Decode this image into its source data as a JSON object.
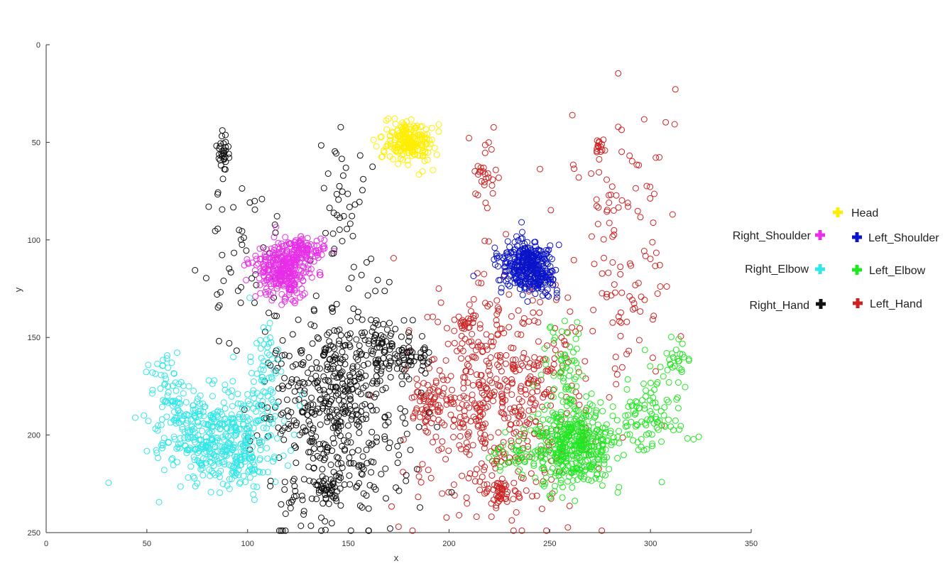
{
  "chart_data": {
    "type": "scatter",
    "title": "",
    "xlabel": "x",
    "ylabel": "y",
    "xlim": [
      0,
      350
    ],
    "ylim": [
      0,
      250
    ],
    "y_reversed": true,
    "x_ticks": [
      "0",
      "50",
      "100",
      "150",
      "200",
      "250",
      "300",
      "350"
    ],
    "y_ticks": [
      "0",
      "50",
      "100",
      "150",
      "200",
      "250"
    ],
    "grid": false,
    "legend_position": "right",
    "marker": "open-circle",
    "series": [
      {
        "name": "Head",
        "color": "#ffee00",
        "clusters": [
          {
            "cx": 180,
            "cy": 50,
            "sx": 6,
            "sy": 5,
            "n": 220
          }
        ]
      },
      {
        "name": "Right_Shoulder",
        "color": "#e82ee8",
        "clusters": [
          {
            "cx": 118,
            "cy": 115,
            "sx": 7,
            "sy": 7,
            "n": 320
          },
          {
            "cx": 127,
            "cy": 105,
            "sx": 6,
            "sy": 3,
            "n": 90
          }
        ]
      },
      {
        "name": "Left_Shoulder",
        "color": "#0a14c8",
        "clusters": [
          {
            "cx": 237,
            "cy": 112,
            "sx": 6,
            "sy": 6,
            "n": 300
          },
          {
            "cx": 245,
            "cy": 120,
            "sx": 5,
            "sy": 4,
            "n": 80
          }
        ]
      },
      {
        "name": "Right_Elbow",
        "color": "#33e6e6",
        "clusters": [
          {
            "cx": 85,
            "cy": 200,
            "sx": 15,
            "sy": 12,
            "n": 420
          },
          {
            "cx": 58,
            "cy": 178,
            "sx": 5,
            "sy": 10,
            "n": 45
          },
          {
            "cx": 108,
            "cy": 168,
            "sx": 4,
            "sy": 15,
            "n": 60
          },
          {
            "cx": 98,
            "cy": 215,
            "sx": 8,
            "sy": 6,
            "n": 60
          }
        ]
      },
      {
        "name": "Left_Elbow",
        "color": "#22e622",
        "clusters": [
          {
            "cx": 262,
            "cy": 205,
            "sx": 10,
            "sy": 10,
            "n": 420
          },
          {
            "cx": 300,
            "cy": 190,
            "sx": 8,
            "sy": 12,
            "n": 100
          },
          {
            "cx": 313,
            "cy": 162,
            "sx": 3,
            "sy": 5,
            "n": 25
          },
          {
            "cx": 258,
            "cy": 168,
            "sx": 5,
            "sy": 12,
            "n": 60
          },
          {
            "cx": 232,
            "cy": 210,
            "sx": 7,
            "sy": 6,
            "n": 40
          }
        ]
      },
      {
        "name": "Right_Hand",
        "color": "#111111",
        "clusters": [
          {
            "cx": 145,
            "cy": 185,
            "sx": 18,
            "sy": 30,
            "n": 560
          },
          {
            "cx": 88,
            "cy": 55,
            "sx": 1.5,
            "sy": 5,
            "n": 30
          },
          {
            "cx": 148,
            "cy": 75,
            "sx": 6,
            "sy": 15,
            "n": 35
          },
          {
            "cx": 168,
            "cy": 155,
            "sx": 5,
            "sy": 6,
            "n": 60
          },
          {
            "cx": 182,
            "cy": 162,
            "sx": 4,
            "sy": 4,
            "n": 35
          },
          {
            "cx": 140,
            "cy": 227,
            "sx": 4,
            "sy": 3,
            "n": 35
          },
          {
            "cx": 95,
            "cy": 110,
            "sx": 10,
            "sy": 25,
            "n": 50
          }
        ]
      },
      {
        "name": "Left_Hand",
        "color": "#cc2222",
        "clusters": [
          {
            "cx": 225,
            "cy": 180,
            "sx": 22,
            "sy": 30,
            "n": 560
          },
          {
            "cx": 190,
            "cy": 185,
            "sx": 5,
            "sy": 6,
            "n": 50
          },
          {
            "cx": 225,
            "cy": 230,
            "sx": 4,
            "sy": 3,
            "n": 40
          },
          {
            "cx": 210,
            "cy": 142,
            "sx": 3,
            "sy": 2,
            "n": 20
          },
          {
            "cx": 218,
            "cy": 65,
            "sx": 4,
            "sy": 10,
            "n": 30
          },
          {
            "cx": 280,
            "cy": 80,
            "sx": 15,
            "sy": 25,
            "n": 60
          },
          {
            "cx": 275,
            "cy": 53,
            "sx": 1.5,
            "sy": 4,
            "n": 15
          },
          {
            "cx": 292,
            "cy": 130,
            "sx": 10,
            "sy": 15,
            "n": 45
          }
        ]
      }
    ]
  },
  "legend": {
    "head": {
      "label": "Head",
      "color": "#ffee00"
    },
    "right_shoulder": {
      "label": "Right_Shoulder",
      "color": "#e82ee8"
    },
    "left_shoulder": {
      "label": "Left_Shoulder",
      "color": "#0a14c8"
    },
    "right_elbow": {
      "label": "Right_Elbow",
      "color": "#33e6e6"
    },
    "left_elbow": {
      "label": "Left_Elbow",
      "color": "#22e622"
    },
    "right_hand": {
      "label": "Right_Hand",
      "color": "#111111"
    },
    "left_hand": {
      "label": "Left_Hand",
      "color": "#cc2222"
    }
  }
}
